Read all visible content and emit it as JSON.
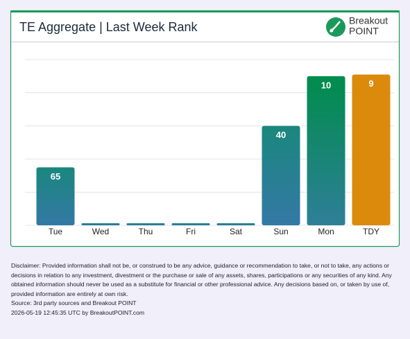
{
  "chart_data": {
    "type": "bar",
    "title": "TE Aggregate | Last Week Rank",
    "categories": [
      "Tue",
      "Wed",
      "Thu",
      "Fri",
      "Sat",
      "Sun",
      "Mon",
      "TDY"
    ],
    "values": [
      65,
      null,
      null,
      null,
      null,
      40,
      10,
      9
    ],
    "colors": [
      "url(#gBlue)",
      "url(#gBlue)",
      "url(#gBlue)",
      "url(#gBlue)",
      "url(#gBlue)",
      "url(#gBlue)",
      "url(#gGreen)",
      "#dc8a0c"
    ],
    "ylim": [
      100,
      0
    ],
    "grid": true
  },
  "logo": {
    "line1": "Breakout",
    "line2": "POINT"
  },
  "footer": {
    "disclaimer": "Disclaimer: Provided information shall not be, or construed to be any advice, guidance or recommendation to take, or not to take, any actions or decisions in relation to any investment, divestment or the purchase or sale of any assets, shares, participations or any securities of any kind. Any obtained information should never be used as a substitute for financial or other professional advice. Any decisions based on, or taken by use of, provided information are entirely at own risk.",
    "source": "Source: 3rd party sources and Breakout POINT",
    "timestamp": "2026-05-19 12:45:35 UTC by BreakoutPOINT.com"
  }
}
